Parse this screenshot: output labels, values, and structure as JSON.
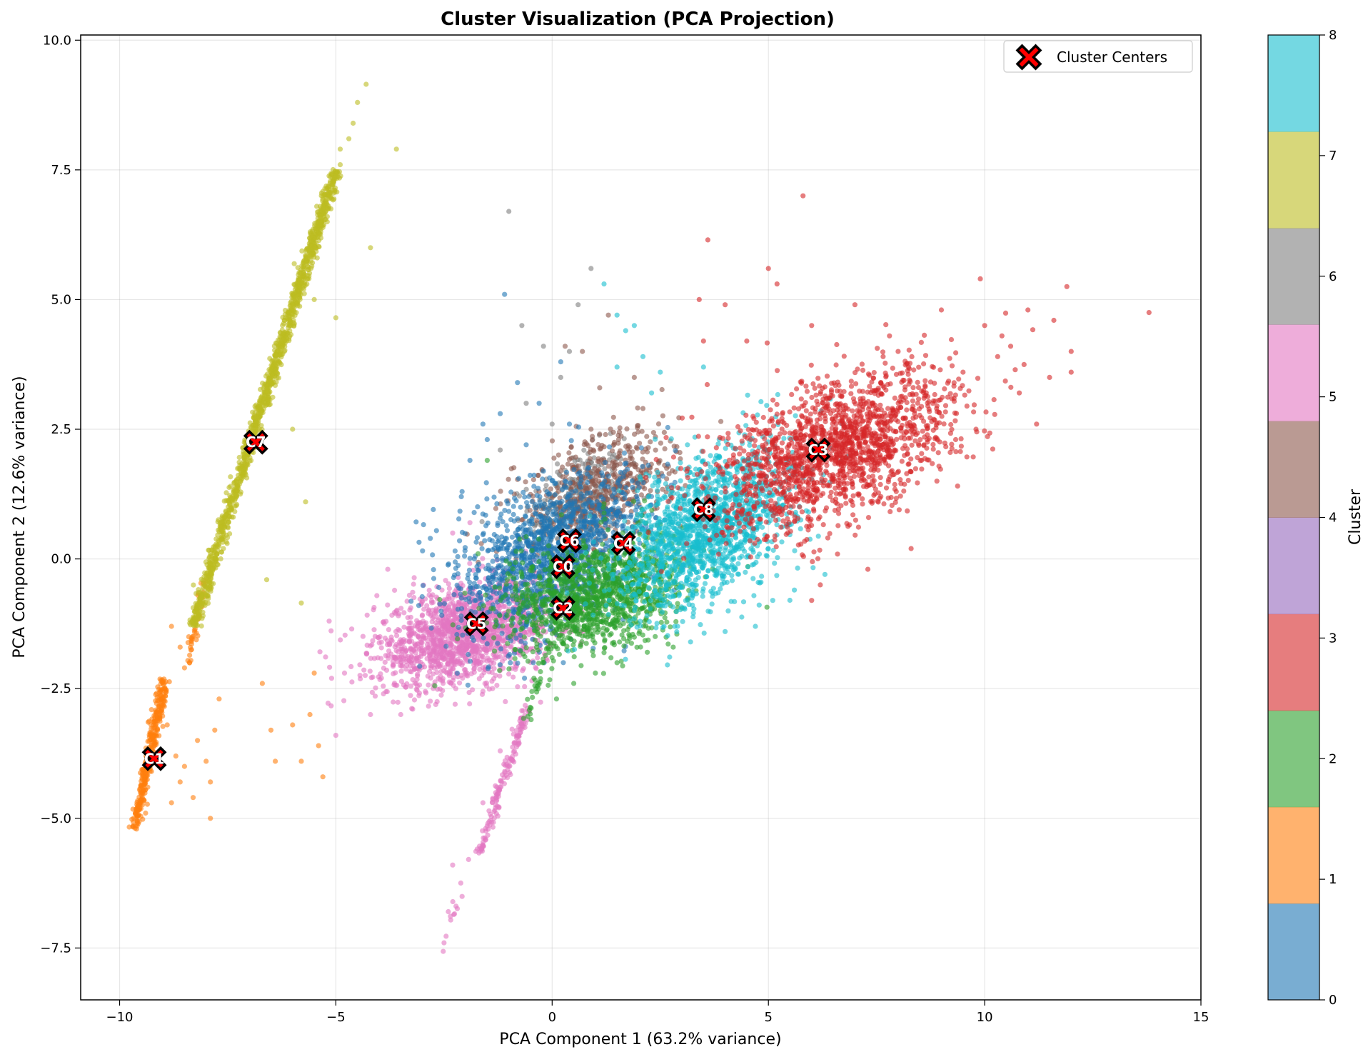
{
  "chart_data": {
    "type": "scatter",
    "title": "Cluster Visualization (PCA Projection)",
    "xlabel": "PCA Component 1 (63.2% variance)",
    "ylabel": "PCA Component 2 (12.6% variance)",
    "xlim": [
      -10.9,
      15
    ],
    "ylim": [
      -8.5,
      10.1
    ],
    "xticks": [
      -10,
      -5,
      0,
      5,
      10,
      15
    ],
    "xtick_labels": [
      "−10",
      "−5",
      "0",
      "5",
      "10",
      "15"
    ],
    "yticks": [
      -7.5,
      -5.0,
      -2.5,
      0.0,
      2.5,
      5.0,
      7.5,
      10.0
    ],
    "ytick_labels": [
      "−7.5",
      "−5.0",
      "−2.5",
      "0.0",
      "2.5",
      "5.0",
      "7.5",
      "10.0"
    ],
    "grid": true,
    "legend": {
      "position": "top-right",
      "entries": [
        "Cluster Centers"
      ]
    },
    "colorbar": {
      "label": "Cluster",
      "range": [
        0,
        8
      ],
      "ticks": [
        0,
        1,
        2,
        3,
        4,
        5,
        6,
        7,
        8
      ],
      "tick_labels": [
        "0",
        "1",
        "2",
        "3",
        "4",
        "5",
        "6",
        "7",
        "8"
      ],
      "colors": [
        "#1f77b4",
        "#ff7f0e",
        "#2ca02c",
        "#d62728",
        "#9467bd",
        "#8c564b",
        "#e377c2",
        "#7f7f7f",
        "#bcbd22",
        "#17becf"
      ]
    },
    "center_marker": {
      "color": "#ff0000",
      "edge": "#000000"
    },
    "centers": [
      {
        "label": "C0",
        "x": 0.25,
        "y": -0.15
      },
      {
        "label": "C1",
        "x": -9.2,
        "y": -3.85
      },
      {
        "label": "C2",
        "x": 0.25,
        "y": -0.95
      },
      {
        "label": "C3",
        "x": 6.15,
        "y": 2.1
      },
      {
        "label": "C4",
        "x": 1.65,
        "y": 0.3
      },
      {
        "label": "C5",
        "x": -1.75,
        "y": -1.25
      },
      {
        "label": "C6",
        "x": 0.4,
        "y": 0.35
      },
      {
        "label": "C7",
        "x": -6.85,
        "y": 2.25
      },
      {
        "label": "C8",
        "x": 3.5,
        "y": 0.95
      }
    ],
    "series": [
      {
        "cluster": 0,
        "color": "#1f77b4",
        "cloud": {
          "cx": 0.0,
          "cy": 0.1,
          "sx": 1.1,
          "sy": 0.75,
          "rho": 0.35,
          "n": 1400
        },
        "outliers": [
          [
            -1.2,
            2.8
          ],
          [
            -0.8,
            3.4
          ],
          [
            -1.5,
            2.3
          ],
          [
            -0.3,
            3.0
          ],
          [
            0.4,
            2.6
          ],
          [
            -1.9,
            1.9
          ],
          [
            -1.1,
            5.1
          ],
          [
            0.2,
            3.8
          ],
          [
            -0.6,
            2.2
          ],
          [
            -1.6,
            2.6
          ],
          [
            -2.1,
            1.2
          ]
        ]
      },
      {
        "cluster": 1,
        "color": "#ff7f0e",
        "line": {
          "x0": -9.65,
          "y0": -5.2,
          "x1": -8.95,
          "y1": -2.3,
          "w": 0.06,
          "n": 300
        },
        "extra_line": {
          "x0": -8.4,
          "y0": -2.0,
          "x1": -8.05,
          "y1": -0.4,
          "w": 0.05,
          "n": 40
        },
        "outliers": [
          [
            -8.8,
            -1.3
          ],
          [
            -8.6,
            -1.7
          ],
          [
            -8.4,
            -1.5
          ],
          [
            -8.5,
            -2.1
          ],
          [
            -9.0,
            -2.7
          ],
          [
            -8.9,
            -3.2
          ],
          [
            -8.7,
            -3.8
          ],
          [
            -8.5,
            -4.0
          ],
          [
            -8.2,
            -3.5
          ],
          [
            -8.0,
            -3.9
          ],
          [
            -7.8,
            -3.3
          ],
          [
            -7.9,
            -4.3
          ],
          [
            -8.3,
            -4.6
          ],
          [
            -8.8,
            -4.7
          ],
          [
            -7.9,
            -5.0
          ],
          [
            -6.7,
            -2.4
          ],
          [
            -6.5,
            -3.3
          ],
          [
            -6.0,
            -3.2
          ],
          [
            -5.8,
            -3.9
          ],
          [
            -5.6,
            -3.0
          ],
          [
            -5.5,
            -2.2
          ],
          [
            -5.4,
            -3.6
          ],
          [
            -5.3,
            -4.2
          ],
          [
            -6.4,
            -3.9
          ],
          [
            -9.35,
            -4.4
          ],
          [
            -9.4,
            -4.9
          ],
          [
            -7.7,
            -2.7
          ],
          [
            -8.6,
            -4.3
          ]
        ]
      },
      {
        "cluster": 2,
        "color": "#2ca02c",
        "cloud": {
          "cx": 1.0,
          "cy": -0.7,
          "sx": 1.05,
          "sy": 0.55,
          "rho": 0.3,
          "n": 1300
        },
        "tail": {
          "x0": -0.1,
          "y0": -1.6,
          "x1": -0.6,
          "y1": -3.1,
          "w": 0.06,
          "n": 30
        },
        "outliers": [
          [
            1.5,
            -2.0
          ],
          [
            2.2,
            -1.8
          ],
          [
            2.8,
            -1.7
          ],
          [
            0.5,
            -2.4
          ],
          [
            1.0,
            -2.2
          ],
          [
            2.5,
            -1.0
          ],
          [
            0.1,
            -2.7
          ],
          [
            -1.5,
            1.9
          ]
        ]
      },
      {
        "cluster": 3,
        "color": "#d62728",
        "cloud": {
          "cx": 6.6,
          "cy": 2.1,
          "sx": 1.4,
          "sy": 0.75,
          "rho": 0.5,
          "n": 1700
        },
        "outliers": [
          [
            8.0,
            4.0
          ],
          [
            9.0,
            4.8
          ],
          [
            10.0,
            4.5
          ],
          [
            11.0,
            4.8
          ],
          [
            11.6,
            4.6
          ],
          [
            12.0,
            4.0
          ],
          [
            12.0,
            3.6
          ],
          [
            11.5,
            3.5
          ],
          [
            10.3,
            3.9
          ],
          [
            13.8,
            4.75
          ],
          [
            11.9,
            5.25
          ],
          [
            10.4,
            4.3
          ],
          [
            9.9,
            5.4
          ],
          [
            9.5,
            3.6
          ],
          [
            10.8,
            3.2
          ],
          [
            11.2,
            2.6
          ],
          [
            9.8,
            2.5
          ],
          [
            8.8,
            3.0
          ],
          [
            5.8,
            7.0
          ],
          [
            3.6,
            6.15
          ],
          [
            5.0,
            5.6
          ],
          [
            5.2,
            5.3
          ],
          [
            6.0,
            4.5
          ],
          [
            4.5,
            4.2
          ],
          [
            3.5,
            4.2
          ],
          [
            4.0,
            4.9
          ],
          [
            7.0,
            4.9
          ],
          [
            3.4,
            5.0
          ],
          [
            7.8,
            4.3
          ],
          [
            10.6,
            4.1
          ],
          [
            8.3,
            0.2
          ],
          [
            7.3,
            -0.2
          ],
          [
            6.2,
            -0.5
          ],
          [
            6.0,
            -0.8
          ]
        ]
      },
      {
        "cluster": 4,
        "color": "#9467bd",
        "outliers": []
      },
      {
        "cluster": 5,
        "color": "#8c564b",
        "cloud": {
          "cx": 1.2,
          "cy": 1.4,
          "sx": 0.9,
          "sy": 0.55,
          "rho": 0.4,
          "n": 500
        },
        "outliers": [
          [
            1.3,
            4.7
          ],
          [
            0.7,
            4.0
          ],
          [
            1.1,
            3.3
          ],
          [
            1.9,
            3.5
          ],
          [
            0.3,
            4.1
          ],
          [
            0.9,
            2.5
          ],
          [
            2.1,
            2.9
          ]
        ]
      },
      {
        "cluster": 6,
        "color": "#e377c2",
        "cloud": {
          "cx": -2.0,
          "cy": -1.45,
          "sx": 1.05,
          "sy": 0.5,
          "rho": 0.35,
          "n": 1600
        },
        "line": {
          "x0": -0.55,
          "y0": -2.8,
          "x1": -1.7,
          "y1": -5.7,
          "w": 0.05,
          "n": 150
        },
        "tail": {
          "x0": -1.9,
          "y0": -5.8,
          "x1": -2.6,
          "y1": -7.7,
          "w": 0.04,
          "n": 12
        },
        "outliers": [
          [
            -5.0,
            -3.4
          ],
          [
            -4.2,
            -3.0
          ],
          [
            -3.5,
            -3.0
          ],
          [
            -4.8,
            -2.2
          ],
          [
            -3.9,
            -2.6
          ],
          [
            -5.1,
            -2.3
          ],
          [
            -2.3,
            -5.9
          ],
          [
            -2.4,
            -6.8
          ],
          [
            -2.5,
            -7.4
          ],
          [
            -1.6,
            -4.7
          ],
          [
            -1.2,
            -3.7
          ],
          [
            -2.8,
            -2.1
          ],
          [
            -3.3,
            -0.7
          ],
          [
            -2.3,
            0.5
          ],
          [
            -1.9,
            0.7
          ],
          [
            -3.8,
            -0.2
          ]
        ]
      },
      {
        "cluster": 7,
        "color": "#7f7f7f",
        "cloud": {
          "cx": 0.6,
          "cy": 1.1,
          "sx": 0.55,
          "sy": 0.5,
          "rho": 0.3,
          "n": 350
        },
        "outliers": [
          [
            -1.0,
            6.7
          ],
          [
            0.9,
            5.6
          ],
          [
            -0.2,
            4.1
          ],
          [
            0.2,
            3.5
          ],
          [
            -0.7,
            4.5
          ],
          [
            -0.6,
            3.0
          ],
          [
            0.0,
            2.6
          ],
          [
            -1.2,
            2.1
          ],
          [
            0.6,
            4.9
          ],
          [
            0.4,
            4.0
          ]
        ]
      },
      {
        "cluster": 8,
        "color": "#bcbd22",
        "line": {
          "x0": -8.3,
          "y0": -1.3,
          "x1": -5.0,
          "y1": 7.5,
          "w": 0.07,
          "n": 1200
        },
        "outliers": [
          [
            -4.6,
            8.4
          ],
          [
            -4.3,
            9.15
          ],
          [
            -4.5,
            8.8
          ],
          [
            -4.7,
            8.1
          ],
          [
            -3.6,
            7.9
          ],
          [
            -4.2,
            6.0
          ],
          [
            -5.0,
            4.65
          ],
          [
            -5.5,
            5.0
          ],
          [
            -5.7,
            1.1
          ],
          [
            -5.8,
            -0.85
          ],
          [
            -6.6,
            -0.4
          ],
          [
            -6.0,
            2.5
          ],
          [
            -4.9,
            7.6
          ],
          [
            -5.2,
            6.5
          ],
          [
            -7.6,
            0.2
          ],
          [
            -4.9,
            7.9
          ]
        ]
      },
      {
        "cluster": 9,
        "color": "#17becf",
        "cloud": {
          "cx": 3.6,
          "cy": 0.6,
          "sx": 1.0,
          "sy": 0.8,
          "rho": 0.5,
          "n": 1500
        },
        "outliers": [
          [
            1.2,
            5.3
          ],
          [
            1.5,
            4.7
          ],
          [
            1.7,
            4.4
          ],
          [
            1.9,
            4.5
          ],
          [
            2.1,
            3.9
          ],
          [
            1.5,
            3.7
          ],
          [
            2.5,
            3.6
          ],
          [
            3.5,
            3.7
          ],
          [
            2.3,
            3.2
          ],
          [
            4.7,
            -1.3
          ],
          [
            4.0,
            -1.4
          ],
          [
            3.2,
            -1.6
          ],
          [
            5.1,
            -0.8
          ],
          [
            2.9,
            -1.3
          ],
          [
            5.6,
            -0.6
          ],
          [
            2.7,
            -0.5
          ]
        ]
      }
    ]
  }
}
